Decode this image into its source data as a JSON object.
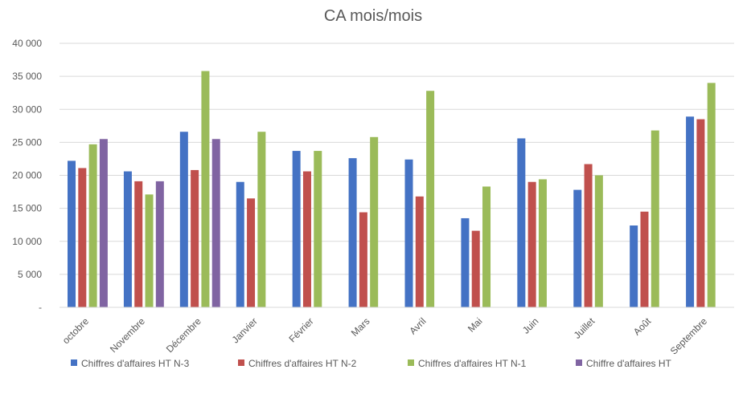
{
  "chart_data": {
    "type": "bar",
    "title": "CA mois/mois",
    "xlabel": "",
    "ylabel": "",
    "ylim": [
      0,
      40000
    ],
    "y_ticks": [
      {
        "value": 0,
        "label": "-"
      },
      {
        "value": 5000,
        "label": "5 000"
      },
      {
        "value": 10000,
        "label": "10 000"
      },
      {
        "value": 15000,
        "label": "15 000"
      },
      {
        "value": 20000,
        "label": "20 000"
      },
      {
        "value": 25000,
        "label": "25 000"
      },
      {
        "value": 30000,
        "label": "30 000"
      },
      {
        "value": 35000,
        "label": "35 000"
      },
      {
        "value": 40000,
        "label": "40 000"
      }
    ],
    "grid": true,
    "legend_position": "bottom",
    "categories": [
      "octobre",
      "Novembre",
      "Décembre",
      "Janvier",
      "Février",
      "Mars",
      "Avril",
      "Mai",
      "Juin",
      "Juillet",
      "Août",
      "Septembre"
    ],
    "series": [
      {
        "name": "Chiffres d'affaires HT N-3",
        "color": "#4472C4",
        "values": [
          22200,
          20600,
          26600,
          19000,
          23700,
          22600,
          22400,
          13500,
          25600,
          17800,
          12400,
          28900
        ]
      },
      {
        "name": "Chiffres d'affaires HT N-2",
        "color": "#C0504D",
        "values": [
          21100,
          19100,
          20800,
          16500,
          20600,
          14400,
          16800,
          11600,
          19000,
          21700,
          14500,
          28500
        ]
      },
      {
        "name": "Chiffres d'affaires HT N-1",
        "color": "#9BBB59",
        "values": [
          24700,
          17100,
          35800,
          26600,
          23700,
          25800,
          32800,
          18300,
          19400,
          20000,
          26800,
          34000
        ]
      },
      {
        "name": "Chiffre d'affaires HT",
        "color": "#8064A2",
        "values": [
          25500,
          19100,
          25500,
          null,
          null,
          null,
          null,
          null,
          null,
          null,
          null,
          null
        ]
      }
    ]
  }
}
